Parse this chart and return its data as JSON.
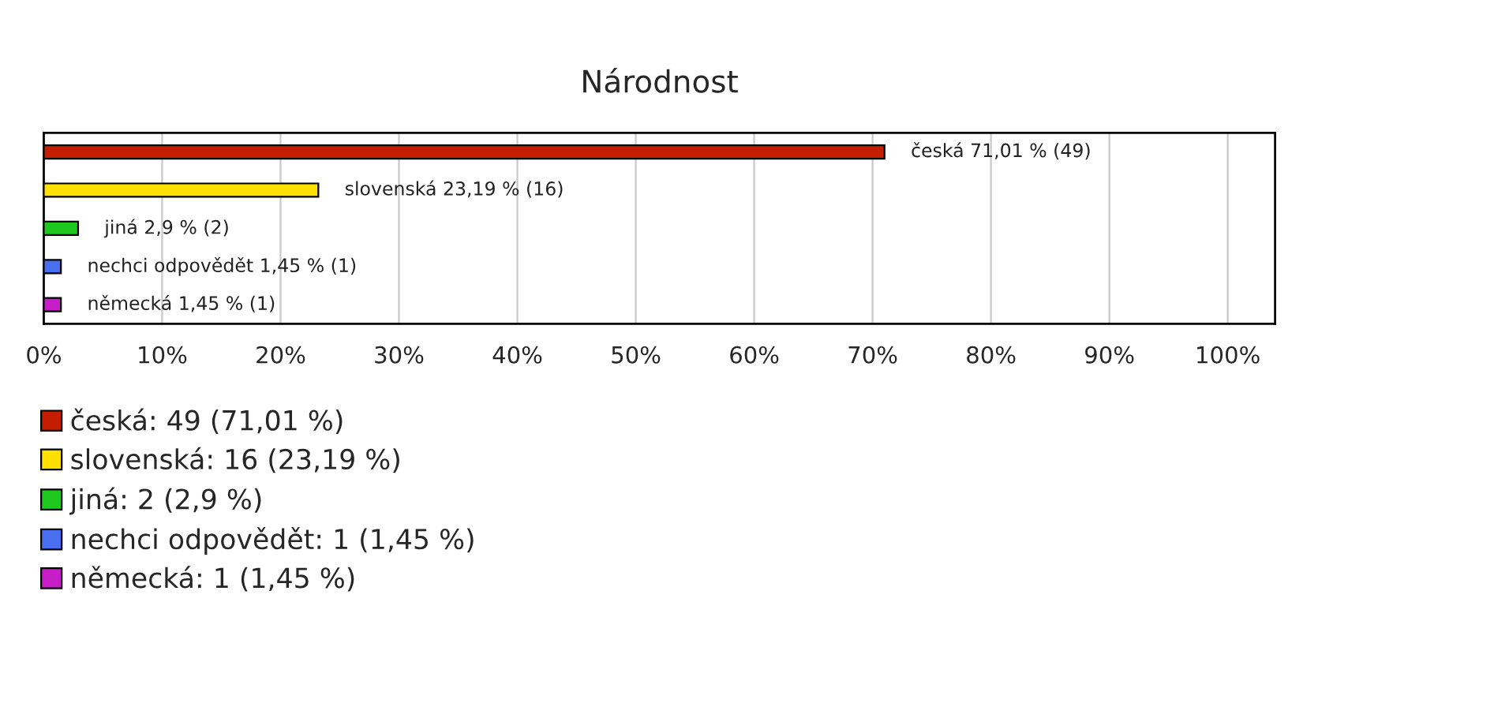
{
  "chart_data": {
    "type": "bar",
    "orientation": "horizontal",
    "title": "Národnost",
    "categories": [
      null,
      null,
      null,
      null,
      null
    ],
    "series": [
      {
        "name": "česká: 49 (71,01 %)",
        "color": "#c41e00",
        "values": [
          71.01,
          null,
          null,
          null,
          null
        ],
        "value_labels": [
          "česká 71,01 % (49)",
          null,
          null,
          null,
          null
        ]
      },
      {
        "name": "slovenská: 16 (23,19 %)",
        "color": "#ffe000",
        "values": [
          null,
          23.19,
          null,
          null,
          null
        ],
        "value_labels": [
          null,
          "slovenská 23,19 % (16)",
          null,
          null,
          null
        ]
      },
      {
        "name": "jiná: 2 (2,9 %)",
        "color": "#1ec81e",
        "values": [
          null,
          null,
          2.9,
          null,
          null
        ],
        "value_labels": [
          null,
          null,
          "jiná 2,9 % (2)",
          null,
          null
        ]
      },
      {
        "name": "nechci odpovědět: 1 (1,45 %)",
        "color": "#4a6ef0",
        "values": [
          null,
          null,
          null,
          1.45,
          null
        ],
        "value_labels": [
          null,
          null,
          null,
          "nechci odpovědět 1,45 % (1)",
          null
        ]
      },
      {
        "name": "německá: 1 (1,45 %)",
        "color": "#c81ec8",
        "values": [
          null,
          null,
          null,
          null,
          1.45
        ],
        "value_labels": [
          null,
          null,
          null,
          null,
          "německá 1,45 % (1)"
        ]
      }
    ],
    "xlim": [
      0,
      104
    ],
    "xticks": [
      {
        "value": 0,
        "label": "0%"
      },
      {
        "value": 10,
        "label": "10%"
      },
      {
        "value": 20,
        "label": "20%"
      },
      {
        "value": 30,
        "label": "30%"
      },
      {
        "value": 40,
        "label": "40%"
      },
      {
        "value": 50,
        "label": "50%"
      },
      {
        "value": 60,
        "label": "60%"
      },
      {
        "value": 70,
        "label": "70%"
      },
      {
        "value": 80,
        "label": "80%"
      },
      {
        "value": 90,
        "label": "90%"
      },
      {
        "value": 100,
        "label": "100%"
      }
    ],
    "grid": "x",
    "tick_labels": "x",
    "legend": "bottom left"
  }
}
